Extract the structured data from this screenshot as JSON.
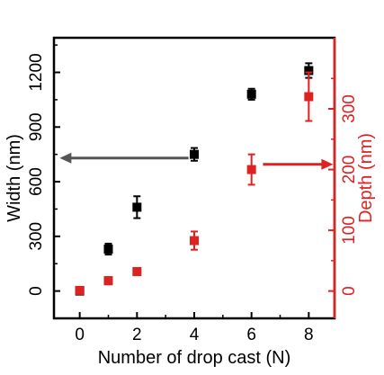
{
  "chart_data": {
    "type": "scatter",
    "xlabel": "Number of drop cast (N)",
    "ylabel_left": "Width (nm)",
    "ylabel_right": "Depth (nm)",
    "xlim": [
      -0.9,
      8.9
    ],
    "ylim_left": [
      -150,
      1390
    ],
    "ylim_right": [
      -45,
      417
    ],
    "xticks": [
      "0",
      "2",
      "4",
      "6",
      "8"
    ],
    "yticks_left": [
      "0",
      "300",
      "600",
      "900",
      "1200"
    ],
    "yticks_right": [
      "0",
      "100",
      "200",
      "300"
    ],
    "series": [
      {
        "axis": "left",
        "color": "#000000",
        "marker": "square",
        "x": [
          0,
          1,
          2,
          4,
          6,
          8
        ],
        "y": [
          0,
          230,
          460,
          750,
          1080,
          1210
        ],
        "err": [
          15,
          30,
          60,
          35,
          30,
          40
        ]
      },
      {
        "axis": "right",
        "color": "#dd2222",
        "marker": "square",
        "x": [
          0,
          1,
          2,
          4,
          6,
          8
        ],
        "y": [
          1,
          17,
          32,
          83,
          200,
          320
        ],
        "err": [
          4,
          6,
          6,
          15,
          25,
          40
        ]
      }
    ],
    "arrows": [
      {
        "points_to": "left",
        "color": "#555555",
        "from_x": 3.8,
        "to_x": -0.7,
        "y_left": 730
      },
      {
        "points_to": "right",
        "color": "#dd2222",
        "from_x": 6.4,
        "to_x": 8.85,
        "y_left": 695
      }
    ]
  }
}
